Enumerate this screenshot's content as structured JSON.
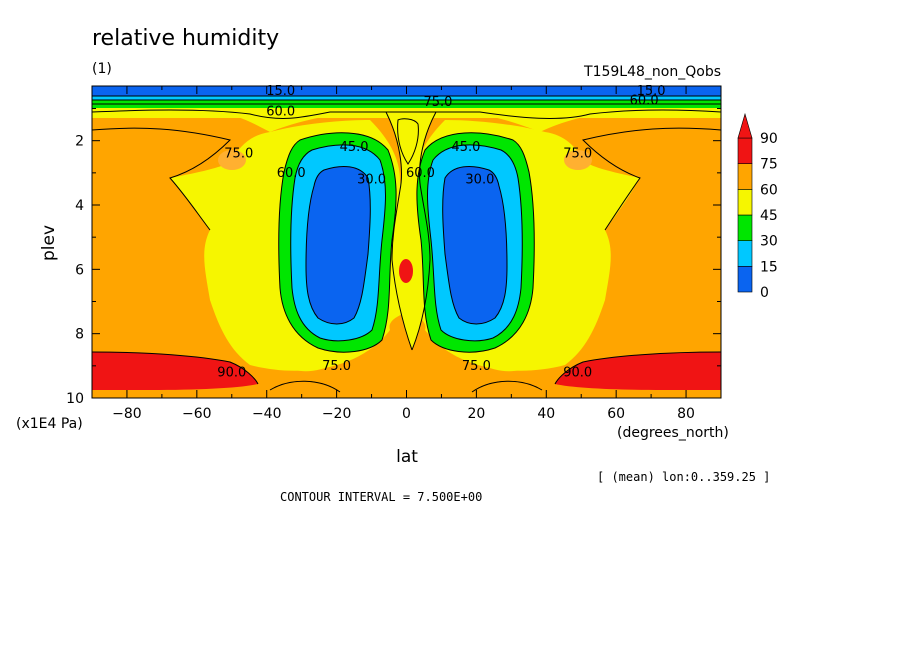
{
  "chart_data": {
    "type": "heatmap",
    "subtype": "filled contour",
    "title": "relative humidity",
    "panel_label": "(1)",
    "run_name": "T159L48_non_Qobs",
    "xlabel": "lat",
    "x_unit_label": "(degrees_north)",
    "ylabel": "plev",
    "y_unit_label": "(x1E4 Pa)",
    "xlim": [
      -90,
      90
    ],
    "ylim": [
      10,
      0.3
    ],
    "y_direction": "downward (pressure increases toward bottom)",
    "x_ticks": [
      -80,
      -60,
      -40,
      -20,
      0,
      20,
      40,
      60,
      80
    ],
    "y_ticks": [
      2,
      4,
      6,
      8,
      10
    ],
    "averaging_note": "[ (mean) lon:0..359.25 ]",
    "contour_interval_text": "CONTOUR INTERVAL = 7.500E+00",
    "contour_interval": 7.5,
    "colorbar": {
      "levels": [
        0,
        15,
        30,
        45,
        60,
        75,
        90
      ],
      "colors": [
        "#0a64f0",
        "#00c8ff",
        "#00e600",
        "#f6f600",
        "#ffa500",
        "#f01414"
      ],
      "extend": "max"
    },
    "contour_labels": [
      {
        "text": "15.0",
        "lat": -36,
        "plev": 0.45
      },
      {
        "text": "60.0",
        "lat": -36,
        "plev": 1.1
      },
      {
        "text": "75.0",
        "lat": 9,
        "plev": 0.8
      },
      {
        "text": "15.0",
        "lat": 70,
        "plev": 0.45
      },
      {
        "text": "60.0",
        "lat": 68,
        "plev": 0.75
      },
      {
        "text": "75.0",
        "lat": -48,
        "plev": 2.4
      },
      {
        "text": "60.0",
        "lat": -33,
        "plev": 3.0
      },
      {
        "text": "45.0",
        "lat": -15,
        "plev": 2.2
      },
      {
        "text": "30.0",
        "lat": -10,
        "plev": 3.2
      },
      {
        "text": "60.0",
        "lat": 4,
        "plev": 3.0
      },
      {
        "text": "45.0",
        "lat": 17,
        "plev": 2.2
      },
      {
        "text": "30.0",
        "lat": 21,
        "plev": 3.2
      },
      {
        "text": "75.0",
        "lat": 49,
        "plev": 2.4
      },
      {
        "text": "90.0",
        "lat": -50,
        "plev": 9.2
      },
      {
        "text": "75.0",
        "lat": -20,
        "plev": 9.0
      },
      {
        "text": "75.0",
        "lat": 20,
        "plev": 9.0
      },
      {
        "text": "90.0",
        "lat": 49,
        "plev": 9.2
      }
    ]
  }
}
